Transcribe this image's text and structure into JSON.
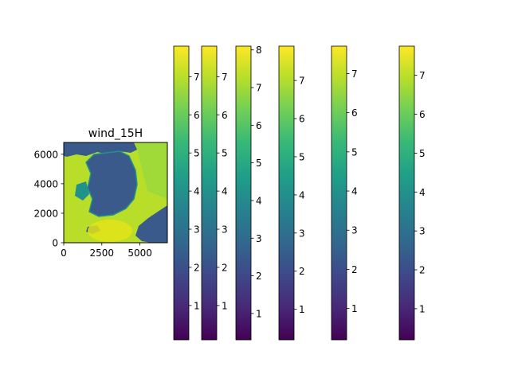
{
  "chart_data": [
    {
      "type": "heatmap",
      "title": "wind_15H",
      "xlabel": "",
      "ylabel": "",
      "xlim": [
        0,
        6800
      ],
      "ylim": [
        0,
        6800
      ],
      "x_ticks": [
        "0",
        "2500",
        "5000"
      ],
      "y_ticks": [
        "0",
        "2000",
        "4000",
        "6000"
      ],
      "colormap": "viridis",
      "grid": false
    },
    {
      "type": "colorbar",
      "range": [
        0.1,
        7.8
      ],
      "ticks": [
        1,
        2,
        3,
        4,
        5,
        6,
        7
      ],
      "tick_labels": [
        "1",
        "2",
        "3",
        "4",
        "5",
        "6",
        "7"
      ],
      "labels_clipped": true
    },
    {
      "type": "colorbar",
      "range": [
        0.1,
        7.8
      ],
      "ticks": [
        1,
        2,
        3,
        4,
        5,
        6,
        7
      ],
      "tick_labels": [
        "1",
        "2",
        "3",
        "4",
        "5",
        "6",
        "7"
      ]
    },
    {
      "type": "colorbar",
      "range": [
        0.3,
        8.1
      ],
      "ticks": [
        1,
        2,
        3,
        4,
        5,
        6,
        7,
        8
      ],
      "tick_labels": [
        "1",
        "2",
        "3",
        "4",
        "5",
        "6",
        "7",
        "8"
      ]
    },
    {
      "type": "colorbar",
      "range": [
        0.2,
        7.9
      ],
      "ticks": [
        1,
        2,
        3,
        4,
        5,
        6,
        7
      ],
      "tick_labels": [
        "1",
        "2",
        "3",
        "4",
        "5",
        "6",
        "7"
      ]
    },
    {
      "type": "colorbar",
      "range": [
        0.2,
        7.7
      ],
      "ticks": [
        1,
        2,
        3,
        4,
        5,
        6,
        7
      ],
      "tick_labels": [
        "1",
        "2",
        "3",
        "4",
        "5",
        "6",
        "7"
      ]
    },
    {
      "type": "colorbar",
      "range": [
        0.2,
        7.75
      ],
      "ticks": [
        1,
        2,
        3,
        4,
        5,
        6,
        7
      ],
      "tick_labels": [
        "1",
        "2",
        "3",
        "4",
        "5",
        "6",
        "7"
      ]
    }
  ],
  "colors": {
    "viridis": [
      "#440154",
      "#482878",
      "#3e4989",
      "#31688e",
      "#26828e",
      "#1f9e89",
      "#35b779",
      "#6ece58",
      "#b5de2b",
      "#fde725"
    ],
    "map_sea": "#b8de29",
    "map_land": "#3b5a8c",
    "map_coast": "#21918c"
  }
}
